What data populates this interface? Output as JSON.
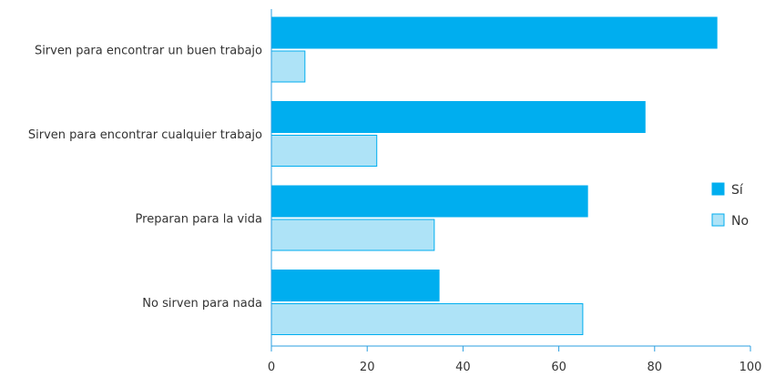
{
  "chart_data": {
    "type": "bar",
    "orientation": "horizontal",
    "categories": [
      "Sirven para encontrar un buen trabajo",
      "Sirven para encontrar cualquier trabajo",
      "Preparan para la vida",
      "No sirven para nada"
    ],
    "series": [
      {
        "name": "Sí",
        "values": [
          93,
          78,
          66,
          35
        ],
        "color": "#00aeef"
      },
      {
        "name": "No",
        "values": [
          7,
          22,
          34,
          65
        ],
        "color": "#aee3f7"
      }
    ],
    "xticks": [
      "0",
      "20",
      "40",
      "60",
      "80",
      "100"
    ],
    "xlim": [
      0,
      100
    ],
    "grid": false,
    "legend_position": "right"
  }
}
